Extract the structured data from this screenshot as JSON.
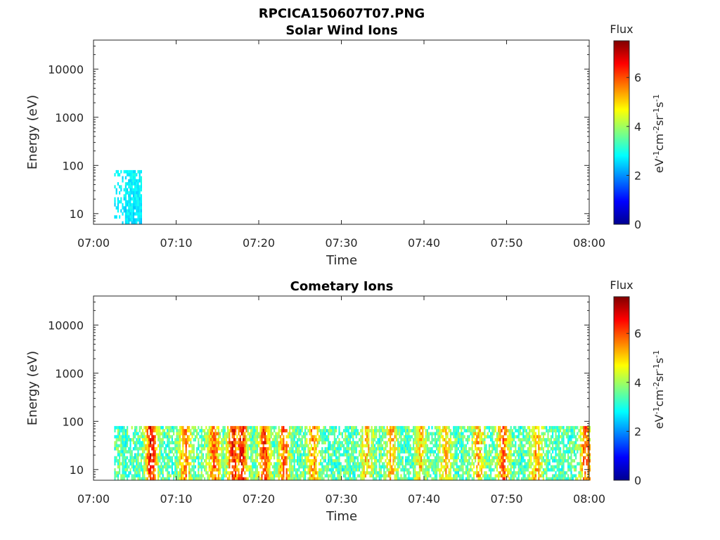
{
  "figure_title": "RPCICA150607T07.PNG",
  "chart_data": [
    {
      "type": "heatmap",
      "title": "Solar Wind Ions",
      "xlabel": "Time",
      "ylabel": "Energy (eV)",
      "x_ticks": [
        "07:00",
        "07:10",
        "07:20",
        "07:30",
        "07:40",
        "07:50",
        "08:00"
      ],
      "xlim_minutes": [
        0,
        60
      ],
      "y_scale": "log",
      "ylim": [
        6,
        40000
      ],
      "y_ticks": [
        10,
        100,
        1000,
        10000
      ],
      "y_tick_labels": [
        "10",
        "100",
        "1000",
        "10000"
      ],
      "colorbar": {
        "title": "Flux",
        "label": "eV-1cm-2sr-1s-1",
        "min": 0,
        "max": 7.5,
        "ticks": [
          "0",
          "2",
          "4",
          "6"
        ],
        "colormap": "jet"
      },
      "grid": false,
      "occupied_time_range_minutes": [
        2.5,
        5.7
      ],
      "occupied_energy_range_eV": [
        6,
        80
      ],
      "typical_flux": 2.8
    },
    {
      "type": "heatmap",
      "title": "Cometary Ions",
      "xlabel": "Time",
      "ylabel": "Energy (eV)",
      "x_ticks": [
        "07:00",
        "07:10",
        "07:20",
        "07:30",
        "07:40",
        "07:50",
        "08:00"
      ],
      "xlim_minutes": [
        0,
        60
      ],
      "y_scale": "log",
      "ylim": [
        6,
        40000
      ],
      "y_ticks": [
        10,
        100,
        1000,
        10000
      ],
      "y_tick_labels": [
        "10",
        "100",
        "1000",
        "10000"
      ],
      "colorbar": {
        "title": "Flux",
        "label": "eV-1cm-2sr-1s-1",
        "min": 0,
        "max": 7.5,
        "ticks": [
          "0",
          "2",
          "4",
          "6"
        ],
        "colormap": "jet"
      },
      "grid": false,
      "occupied_time_range_minutes": [
        2.5,
        60
      ],
      "occupied_energy_range_eV": [
        6,
        80
      ],
      "flux_peaks_minutes": [
        {
          "t": 6.9,
          "flux": 6.6
        },
        {
          "t": 11.0,
          "flux": 5.6
        },
        {
          "t": 14.5,
          "flux": 5.8
        },
        {
          "t": 16.8,
          "flux": 6.4
        },
        {
          "t": 17.8,
          "flux": 6.5
        },
        {
          "t": 20.6,
          "flux": 6.2
        },
        {
          "t": 23.0,
          "flux": 5.8
        },
        {
          "t": 26.5,
          "flux": 5.4
        },
        {
          "t": 33.0,
          "flux": 5.0
        },
        {
          "t": 36.0,
          "flux": 5.2
        },
        {
          "t": 39.5,
          "flux": 4.9
        },
        {
          "t": 42.5,
          "flux": 5.0
        },
        {
          "t": 46.5,
          "flux": 5.2
        },
        {
          "t": 49.5,
          "flux": 5.8
        },
        {
          "t": 53.5,
          "flux": 5.2
        },
        {
          "t": 59.5,
          "flux": 5.8
        }
      ]
    }
  ]
}
